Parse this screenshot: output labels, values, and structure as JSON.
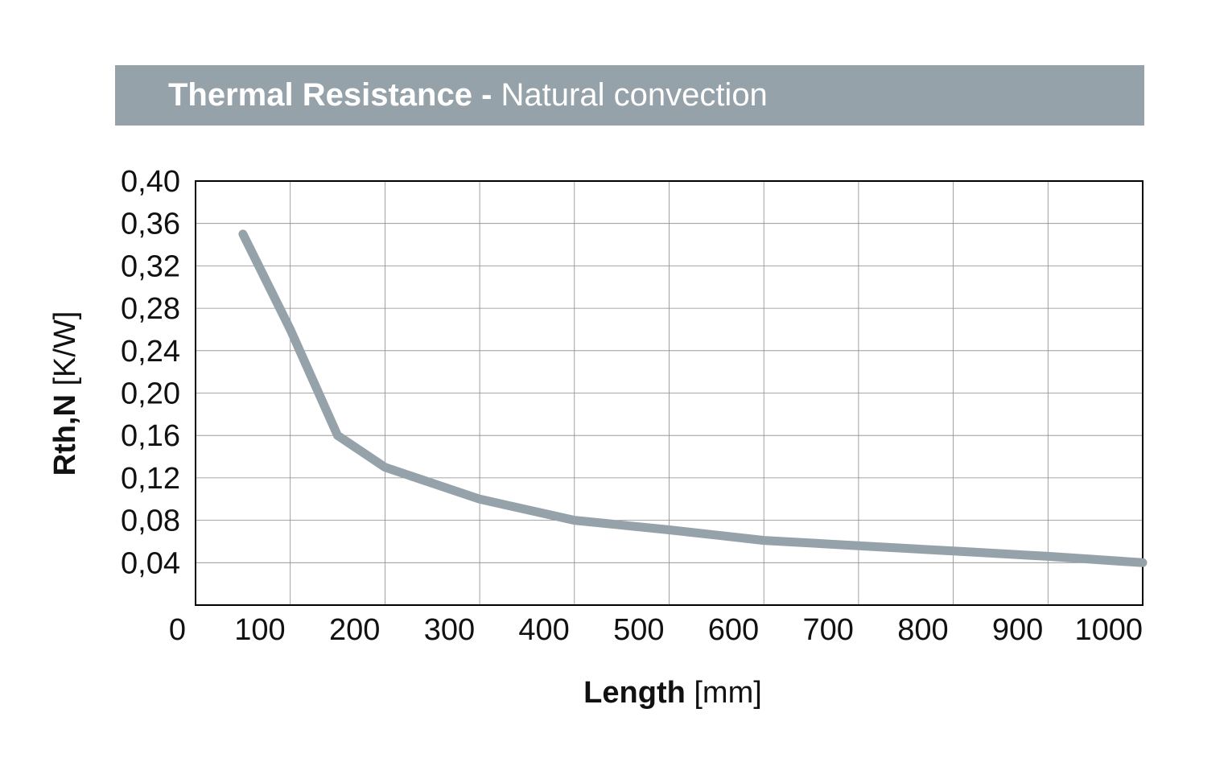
{
  "title": {
    "bold": "Thermal Resistance -",
    "normal": "Natural convection"
  },
  "chart_data": {
    "type": "line",
    "xlabel_bold": "Length",
    "xlabel_unit": "[mm]",
    "ylabel_bold": "Rth,N",
    "ylabel_unit": "[K/W]",
    "xlim": [
      0,
      1000
    ],
    "ylim": [
      0,
      0.4
    ],
    "x_ticks": [
      0,
      100,
      200,
      300,
      400,
      500,
      600,
      700,
      800,
      900,
      1000
    ],
    "x_tick_labels": [
      "0",
      "100",
      "200",
      "300",
      "400",
      "500",
      "600",
      "700",
      "800",
      "900",
      "1000"
    ],
    "y_ticks": [
      0.04,
      0.08,
      0.12,
      0.16,
      0.2,
      0.24,
      0.28,
      0.32,
      0.36,
      0.4
    ],
    "y_tick_labels": [
      "0,04",
      "0,08",
      "0,12",
      "0,16",
      "0,20",
      "0,24",
      "0,28",
      "0,32",
      "0,36",
      "0,40"
    ],
    "grid": true,
    "line_color": "#96a2aa",
    "series": [
      {
        "x": [
          50,
          100,
          150,
          200,
          300,
          400,
          500,
          600,
          700,
          800,
          900,
          1000
        ],
        "values": [
          0.35,
          0.26,
          0.16,
          0.13,
          0.1,
          0.08,
          0.071,
          0.061,
          0.056,
          0.051,
          0.046,
          0.04
        ]
      }
    ]
  }
}
